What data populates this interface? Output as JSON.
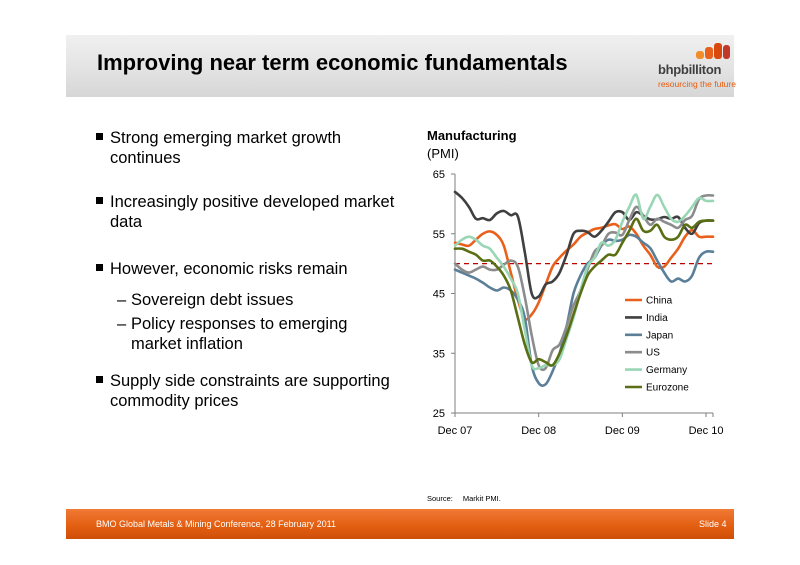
{
  "slide": {
    "title": "Improving near term economic fundamentals",
    "logo_word": "bhpbilliton",
    "logo_tagline": "resourcing the future"
  },
  "bullets": [
    "Strong emerging market growth continues",
    "Increasingly positive developed market data",
    "However, economic risks remain",
    "Supply side constraints are supporting commodity prices"
  ],
  "sub_bullets": [
    "Sovereign debt issues",
    "Policy responses to emerging market inflation"
  ],
  "chart_header": {
    "title": "Manufacturing",
    "unit": "(PMI)"
  },
  "source": {
    "label": "Source:",
    "text": "Markit PMI."
  },
  "footer": {
    "left": "BMO Global Metals & Mining Conference, 28 February 2011",
    "right": "Slide 4"
  },
  "chart_data": {
    "type": "line",
    "title": "Manufacturing",
    "ylabel": "(PMI)",
    "xlabel": "",
    "x_labels": [
      "Dec 07",
      "Dec 08",
      "Dec 09",
      "Dec 10"
    ],
    "y_ticks": [
      25,
      35,
      45,
      55,
      65
    ],
    "ylim": [
      25,
      65
    ],
    "x_range_months": [
      0,
      37
    ],
    "reference_line": {
      "value": 50,
      "color": "#c00000",
      "style": "dashed"
    },
    "legend_position": "right",
    "grid": false,
    "series": [
      {
        "name": "China",
        "color": "#e8601c",
        "values": [
          53.5,
          53.2,
          53.0,
          54.0,
          55.0,
          55.4,
          54.8,
          53.0,
          48.5,
          44.0,
          40.8,
          41.5,
          43.5,
          46.5,
          49.5,
          51.0,
          52.2,
          53.2,
          54.5,
          55.2,
          55.8,
          56.0,
          56.4,
          56.6,
          55.8,
          56.2,
          55.0,
          53.0,
          51.5,
          49.5,
          49.5,
          51.0,
          52.5,
          54.5,
          55.6,
          54.5,
          54.5,
          54.5
        ]
      },
      {
        "name": "India",
        "color": "#404040",
        "values": [
          62.0,
          61.0,
          59.5,
          57.5,
          57.6,
          57.3,
          58.4,
          58.8,
          58.1,
          57.9,
          52.0,
          45.0,
          44.5,
          46.5,
          47.0,
          48.5,
          51.5,
          55.0,
          55.5,
          55.3,
          54.5,
          55.5,
          57.0,
          58.6,
          58.6,
          57.3,
          58.6,
          58.0,
          57.4,
          57.4,
          57.8,
          57.5,
          57.8,
          56.0,
          55.0,
          56.8,
          57.2,
          57.2
        ]
      },
      {
        "name": "Japan",
        "color": "#5b7f99",
        "values": [
          49.0,
          48.5,
          48.0,
          47.5,
          46.8,
          46.0,
          45.5,
          46.0,
          45.5,
          44.0,
          41.0,
          33.0,
          30.0,
          29.8,
          32.0,
          35.0,
          39.5,
          45.0,
          48.0,
          50.0,
          51.0,
          53.0,
          54.0,
          53.8,
          54.0,
          54.8,
          54.5,
          53.5,
          52.6,
          50.5,
          48.5,
          47.0,
          47.5,
          47.0,
          48.0,
          51.0,
          52.0,
          52.0
        ]
      },
      {
        "name": "US",
        "color": "#8c8c8c",
        "values": [
          50.0,
          49.0,
          48.5,
          49.0,
          49.5,
          49.0,
          49.0,
          49.8,
          50.5,
          49.5,
          44.5,
          38.0,
          33.0,
          32.5,
          35.5,
          36.5,
          39.5,
          43.0,
          45.5,
          49.0,
          52.0,
          53.0,
          55.0,
          55.2,
          54.8,
          57.3,
          59.5,
          58.0,
          56.5,
          57.5,
          57.0,
          56.5,
          56.0,
          57.3,
          58.0,
          60.8,
          61.4,
          61.4
        ]
      },
      {
        "name": "Germany",
        "color": "#99d6b5",
        "values": [
          53.0,
          54.0,
          54.5,
          54.0,
          53.0,
          52.5,
          51.0,
          49.5,
          47.5,
          45.0,
          39.0,
          33.0,
          32.5,
          33.0,
          33.0,
          34.0,
          37.5,
          41.0,
          45.5,
          49.5,
          51.0,
          53.5,
          53.0,
          54.0,
          57.0,
          59.5,
          61.5,
          57.5,
          59.5,
          61.5,
          59.5,
          57.5,
          57.0,
          58.0,
          59.5,
          61.0,
          60.5,
          60.5
        ]
      },
      {
        "name": "Eurozone",
        "color": "#5a6e13",
        "values": [
          52.5,
          52.5,
          52.0,
          51.5,
          50.5,
          50.5,
          49.5,
          48.0,
          45.5,
          41.0,
          36.5,
          33.5,
          34.0,
          33.5,
          33.0,
          35.0,
          38.0,
          41.5,
          45.0,
          48.0,
          49.5,
          50.5,
          51.5,
          51.5,
          53.5,
          55.5,
          57.5,
          55.5,
          55.5,
          56.5,
          54.5,
          54.0,
          54.5,
          56.5,
          56.0,
          57.0,
          57.2,
          57.2
        ]
      }
    ]
  }
}
